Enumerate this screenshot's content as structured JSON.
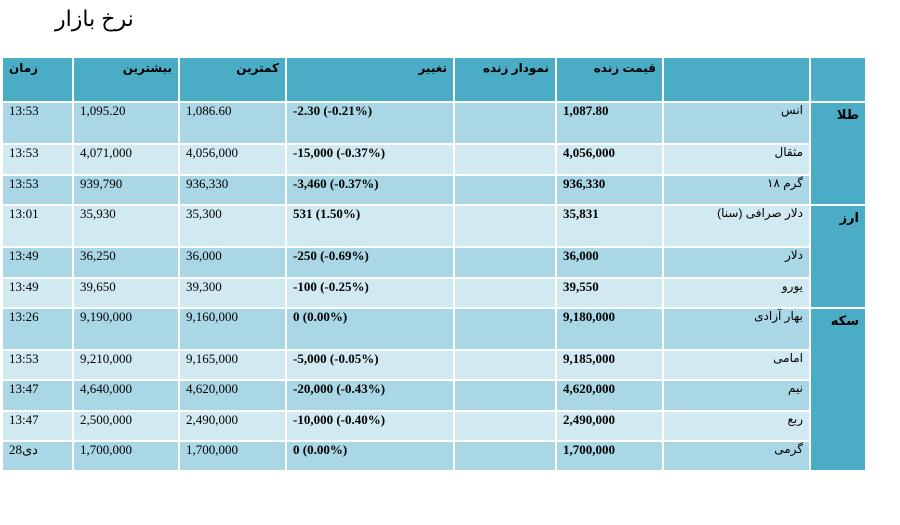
{
  "title": "نرخ بازار",
  "header": {
    "time": "زمان",
    "high": "بیشترین",
    "low": "کمترین",
    "change": "تغییر",
    "live_chart": "نمودار زنده",
    "live_price": "قیمت زنده",
    "name": "",
    "group": ""
  },
  "groups": {
    "gold": "طلا",
    "currency": "ارز",
    "coin": "سکه"
  },
  "rows": [
    {
      "name": "انس",
      "price": "1,087.80",
      "chart": "",
      "change": "-2.30 (-0.21%)",
      "low": "1,086.60",
      "high": "1,095.20",
      "time": "13:53"
    },
    {
      "name": "مثقال",
      "price": "4,056,000",
      "chart": "",
      "change": "-15,000 (-0.37%)",
      "low": "4,056,000",
      "high": "4,071,000",
      "time": "13:53"
    },
    {
      "name": "گرم ۱۸",
      "price": "936,330",
      "chart": "",
      "change": "-3,460 (-0.37%)",
      "low": "936,330",
      "high": "939,790",
      "time": "13:53"
    },
    {
      "name": "دلار صرافی (سنا)",
      "price": "35,831",
      "chart": "",
      "change": "531 (1.50%)",
      "low": "35,300",
      "high": "35,930",
      "time": "13:01"
    },
    {
      "name": "دلار",
      "price": "36,000",
      "chart": "",
      "change": "-250 (-0.69%)",
      "low": "36,000",
      "high": "36,250",
      "time": "13:49"
    },
    {
      "name": "یورو",
      "price": "39,550",
      "chart": "",
      "change": "-100 (-0.25%)",
      "low": "39,300",
      "high": "39,650",
      "time": "13:49"
    },
    {
      "name": "بهار آزادی",
      "price": "9,180,000",
      "chart": "",
      "change": "0 (0.00%)",
      "low": "9,160,000",
      "high": "9,190,000",
      "time": "13:26"
    },
    {
      "name": "امامی",
      "price": "9,185,000",
      "chart": "",
      "change": "-5,000 (-0.05%)",
      "low": "9,165,000",
      "high": "9,210,000",
      "time": "13:53"
    },
    {
      "name": "نیم",
      "price": "4,620,000",
      "chart": "",
      "change": "-20,000 (-0.43%)",
      "low": "4,620,000",
      "high": "4,640,000",
      "time": "13:47"
    },
    {
      "name": "ربع",
      "price": "2,490,000",
      "chart": "",
      "change": "-10,000 (-0.40%)",
      "low": "2,490,000",
      "high": "2,500,000",
      "time": "13:47"
    },
    {
      "name": "گرمی",
      "price": "1,700,000",
      "chart": "",
      "change": "0 (0.00%)",
      "low": "1,700,000",
      "high": "1,700,000",
      "time": "28دی"
    }
  ],
  "colors": {
    "header": "#4bacc6",
    "row_dark": "#a9d7e5",
    "row_light": "#d1eaf2"
  }
}
